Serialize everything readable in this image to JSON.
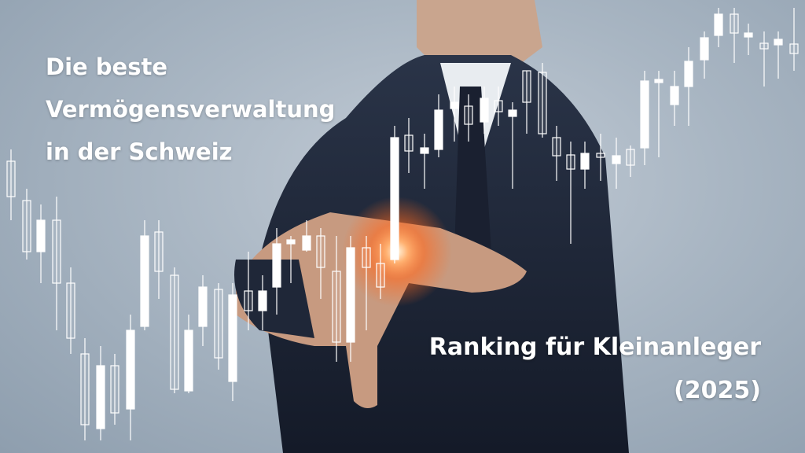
{
  "headline": {
    "lines": [
      "Die beste",
      "Vermögensverwaltung",
      "in der Schweiz"
    ]
  },
  "subline": {
    "lines": [
      "Ranking für Kleinanleger",
      "(2025)"
    ]
  },
  "colors": {
    "background": "#a9b6c3",
    "suit": "#1d2536",
    "glow": "#ff7a30",
    "text": "#ffffff"
  },
  "image": {
    "subject": "businessman in dark suit pointing at a candlestick chart",
    "icon": "candlestick-chart"
  }
}
